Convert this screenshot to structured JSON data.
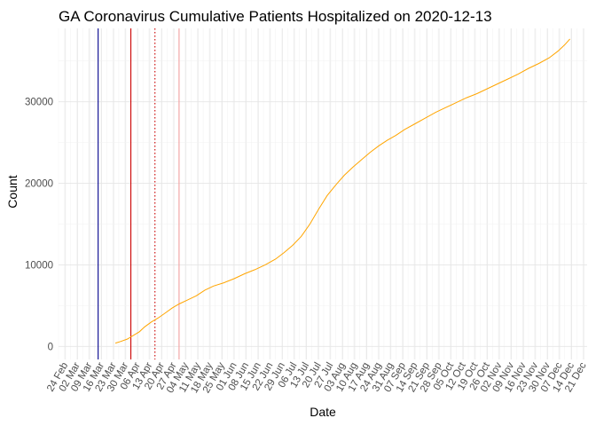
{
  "chart_data": {
    "type": "line",
    "title": "GA Coronavirus Cumulative Patients Hospitalized on 2020-12-13",
    "xlabel": "Date",
    "ylabel": "Count",
    "xlim": [
      "2020-02-20",
      "2020-12-23"
    ],
    "ylim": [
      -1600,
      39000
    ],
    "grid": true,
    "x_ticks": [
      "24 Feb",
      "02 Mar",
      "09 Mar",
      "16 Mar",
      "23 Mar",
      "30 Mar",
      "06 Apr",
      "13 Apr",
      "20 Apr",
      "27 Apr",
      "04 May",
      "11 May",
      "18 May",
      "25 May",
      "01 Jun",
      "08 Jun",
      "15 Jun",
      "22 Jun",
      "29 Jun",
      "06 Jul",
      "13 Jul",
      "20 Jul",
      "27 Jul",
      "03 Aug",
      "10 Aug",
      "17 Aug",
      "24 Aug",
      "31 Aug",
      "07 Sep",
      "14 Sep",
      "21 Sep",
      "28 Sep",
      "05 Oct",
      "12 Oct",
      "19 Oct",
      "26 Oct",
      "02 Nov",
      "09 Nov",
      "16 Nov",
      "23 Nov",
      "30 Nov",
      "07 Dec",
      "14 Dec",
      "21 Dec"
    ],
    "x_tick_dates": [
      "2020-02-24",
      "2020-03-02",
      "2020-03-09",
      "2020-03-16",
      "2020-03-23",
      "2020-03-30",
      "2020-04-06",
      "2020-04-13",
      "2020-04-20",
      "2020-04-27",
      "2020-05-04",
      "2020-05-11",
      "2020-05-18",
      "2020-05-25",
      "2020-06-01",
      "2020-06-08",
      "2020-06-15",
      "2020-06-22",
      "2020-06-29",
      "2020-07-06",
      "2020-07-13",
      "2020-07-20",
      "2020-07-27",
      "2020-08-03",
      "2020-08-10",
      "2020-08-17",
      "2020-08-24",
      "2020-08-31",
      "2020-09-07",
      "2020-09-14",
      "2020-09-21",
      "2020-09-28",
      "2020-10-05",
      "2020-10-12",
      "2020-10-19",
      "2020-10-26",
      "2020-11-02",
      "2020-11-09",
      "2020-11-16",
      "2020-11-23",
      "2020-11-30",
      "2020-12-07",
      "2020-12-14",
      "2020-12-21"
    ],
    "y_ticks": [
      0,
      10000,
      20000,
      30000
    ],
    "y_tick_labels": [
      "0",
      "10000",
      "20000",
      "30000"
    ],
    "vlines": [
      {
        "date": "2020-03-14",
        "color": "#00008b",
        "style": "solid"
      },
      {
        "date": "2020-04-02",
        "color": "#cc0000",
        "style": "solid"
      },
      {
        "date": "2020-04-16",
        "color": "#cc0000",
        "style": "dotted"
      },
      {
        "date": "2020-04-30",
        "color": "#f2a0a0",
        "style": "solid"
      }
    ],
    "series": [
      {
        "color": "#ffa500",
        "x": [
          "2020-03-24",
          "2020-03-27",
          "2020-03-31",
          "2020-04-03",
          "2020-04-07",
          "2020-04-10",
          "2020-04-14",
          "2020-04-18",
          "2020-04-22",
          "2020-04-26",
          "2020-04-30",
          "2020-05-05",
          "2020-05-10",
          "2020-05-15",
          "2020-05-20",
          "2020-05-26",
          "2020-06-01",
          "2020-06-07",
          "2020-06-13",
          "2020-06-19",
          "2020-06-25",
          "2020-06-30",
          "2020-07-05",
          "2020-07-10",
          "2020-07-15",
          "2020-07-20",
          "2020-07-25",
          "2020-07-30",
          "2020-08-04",
          "2020-08-09",
          "2020-08-14",
          "2020-08-19",
          "2020-08-24",
          "2020-08-29",
          "2020-09-03",
          "2020-09-08",
          "2020-09-14",
          "2020-09-20",
          "2020-09-26",
          "2020-10-02",
          "2020-10-08",
          "2020-10-14",
          "2020-10-20",
          "2020-10-26",
          "2020-11-01",
          "2020-11-07",
          "2020-11-13",
          "2020-11-19",
          "2020-11-25",
          "2020-12-01",
          "2020-12-06",
          "2020-12-10",
          "2020-12-13"
        ],
        "values": [
          400,
          600,
          900,
          1300,
          1800,
          2400,
          3000,
          3500,
          4100,
          4700,
          5200,
          5700,
          6200,
          6900,
          7400,
          7800,
          8300,
          8900,
          9400,
          10000,
          10700,
          11500,
          12400,
          13500,
          15000,
          16800,
          18500,
          19800,
          21000,
          22000,
          22900,
          23800,
          24600,
          25300,
          25900,
          26600,
          27300,
          28000,
          28700,
          29300,
          29900,
          30500,
          31000,
          31600,
          32200,
          32800,
          33400,
          34100,
          34700,
          35400,
          36200,
          37000,
          37700
        ]
      }
    ]
  }
}
